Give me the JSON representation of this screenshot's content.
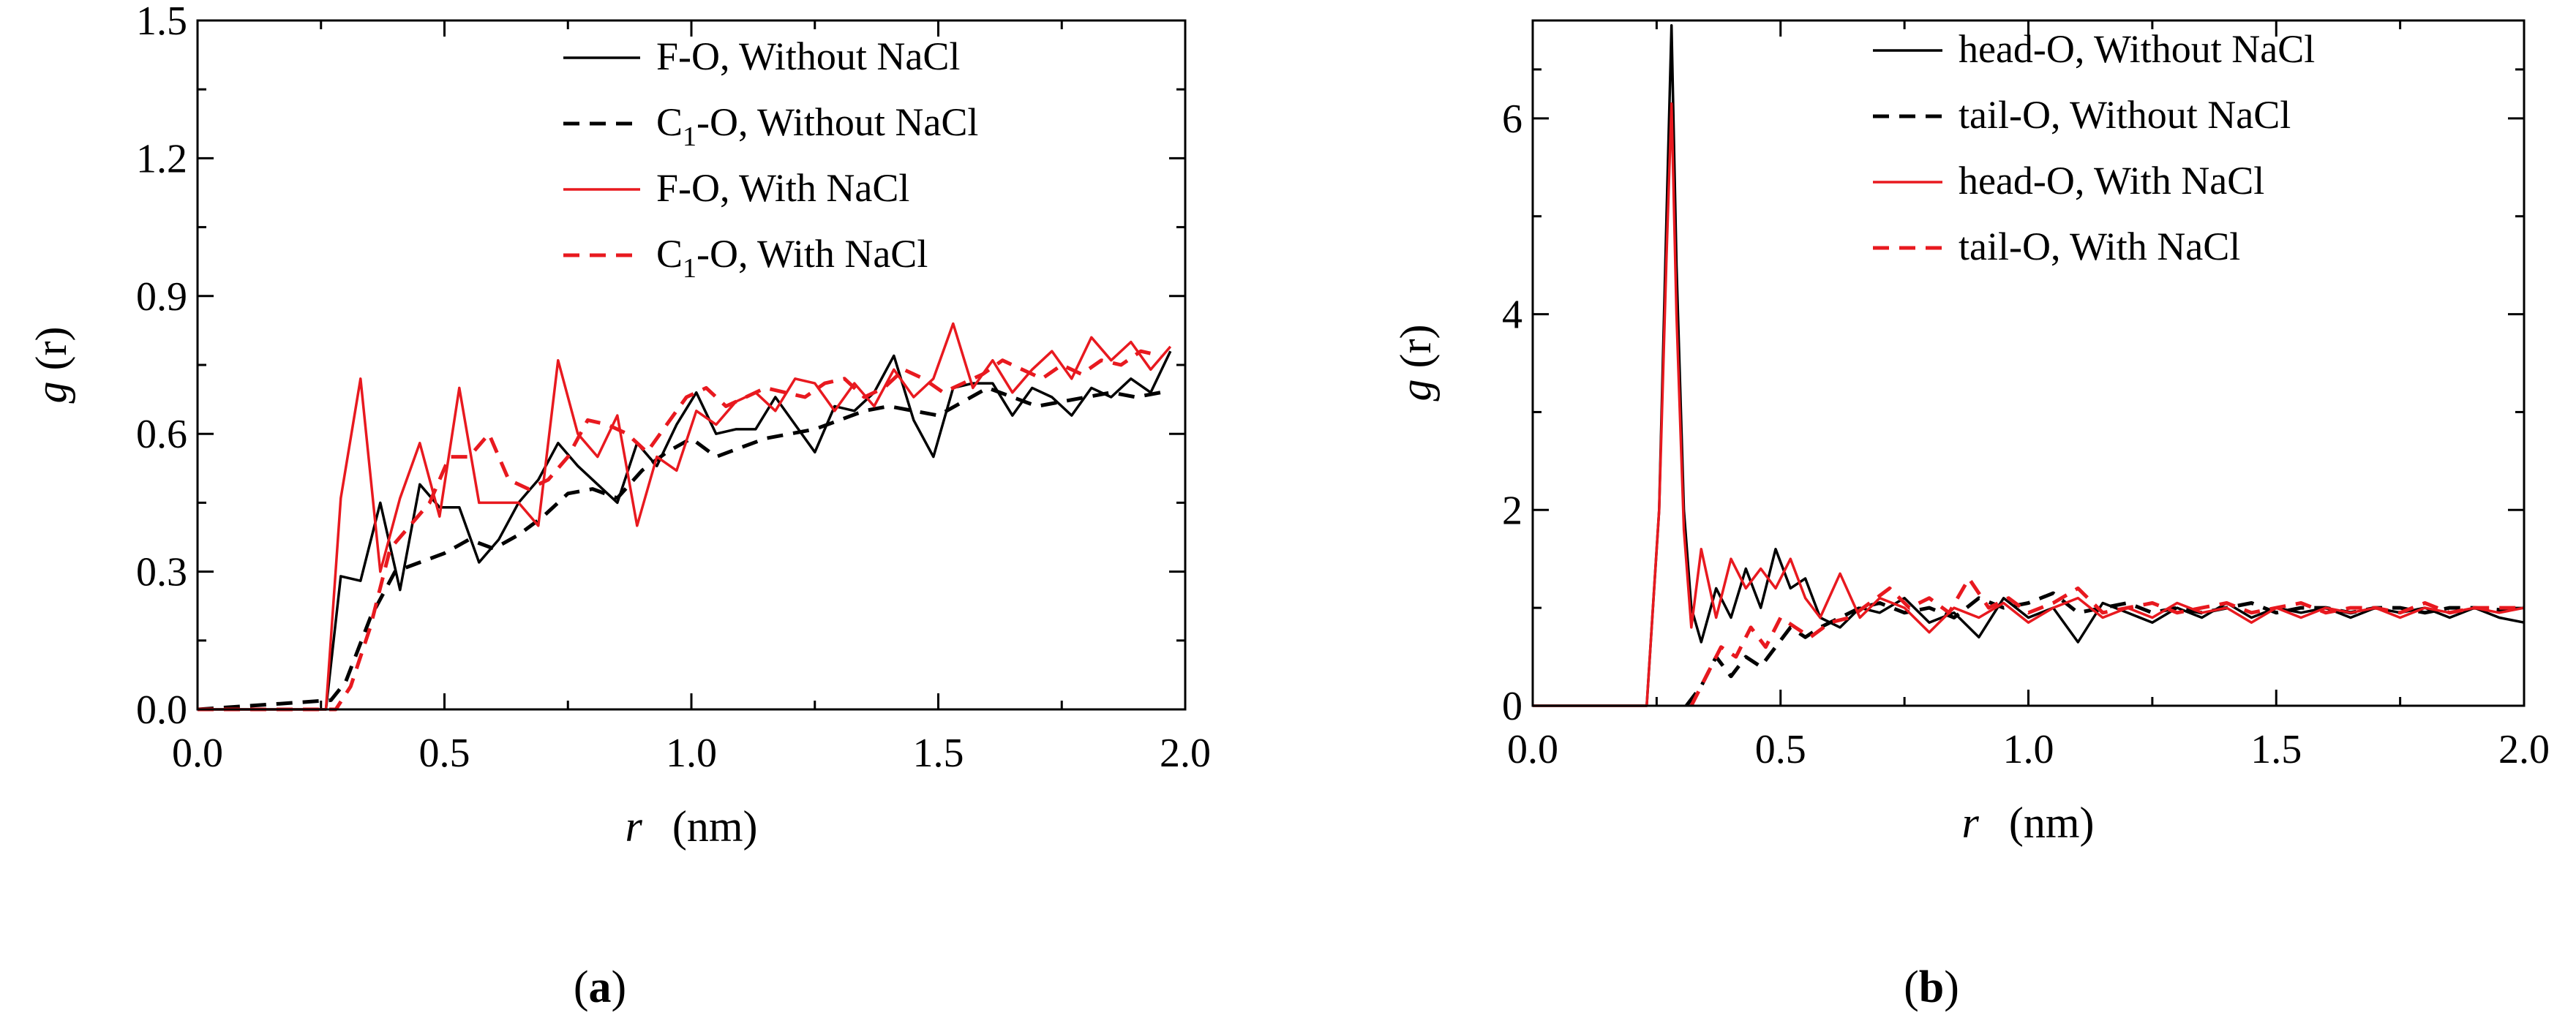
{
  "chart_data": [
    {
      "type": "line",
      "panel": "a",
      "caption_letter": "a",
      "xlabel_var": "r",
      "xlabel_unit": "(nm)",
      "ylabel_var": "g",
      "ylabel_arg": "(r)",
      "xlim": [
        0.0,
        2.0
      ],
      "ylim": [
        0.0,
        1.5
      ],
      "xticks": [
        0.0,
        0.5,
        1.0,
        1.5,
        2.0
      ],
      "xtick_labels": [
        "0.0",
        "0.5",
        "1.0",
        "1.5",
        "2.0"
      ],
      "yticks": [
        0.0,
        0.3,
        0.6,
        0.9,
        1.2,
        1.5
      ],
      "ytick_labels": [
        "0.0",
        "0.3",
        "0.6",
        "0.9",
        "1.2",
        "1.5"
      ],
      "legend_position": "top-right",
      "series": [
        {
          "name": "F-O, Without NaCl",
          "legend": {
            "pre": "F-O, Without NaCl",
            "sub": "",
            "post": ""
          },
          "color": "#000000",
          "dash": "solid",
          "x": [
            0.0,
            0.26,
            0.29,
            0.33,
            0.37,
            0.41,
            0.45,
            0.49,
            0.53,
            0.57,
            0.61,
            0.65,
            0.69,
            0.73,
            0.77,
            0.81,
            0.85,
            0.89,
            0.93,
            0.97,
            1.01,
            1.05,
            1.09,
            1.13,
            1.17,
            1.21,
            1.25,
            1.29,
            1.33,
            1.37,
            1.41,
            1.45,
            1.49,
            1.53,
            1.57,
            1.61,
            1.65,
            1.69,
            1.73,
            1.77,
            1.81,
            1.85,
            1.89,
            1.93,
            1.97
          ],
          "y": [
            0.0,
            0.0,
            0.29,
            0.28,
            0.45,
            0.26,
            0.49,
            0.44,
            0.44,
            0.32,
            0.37,
            0.45,
            0.5,
            0.58,
            0.53,
            0.49,
            0.45,
            0.58,
            0.53,
            0.62,
            0.69,
            0.6,
            0.61,
            0.61,
            0.68,
            0.62,
            0.56,
            0.66,
            0.65,
            0.69,
            0.77,
            0.63,
            0.55,
            0.7,
            0.71,
            0.71,
            0.64,
            0.7,
            0.68,
            0.64,
            0.7,
            0.68,
            0.72,
            0.69,
            0.78
          ]
        },
        {
          "name": "C1-O, Without NaCl",
          "legend": {
            "pre": "C",
            "sub": "1",
            "post": "-O, Without NaCl"
          },
          "color": "#000000",
          "dash": "dash",
          "x": [
            0.0,
            0.27,
            0.3,
            0.35,
            0.4,
            0.45,
            0.5,
            0.55,
            0.6,
            0.65,
            0.7,
            0.75,
            0.8,
            0.85,
            0.9,
            0.95,
            1.0,
            1.05,
            1.1,
            1.15,
            1.2,
            1.25,
            1.3,
            1.35,
            1.4,
            1.45,
            1.5,
            1.55,
            1.6,
            1.65,
            1.7,
            1.75,
            1.8,
            1.85,
            1.9,
            1.95
          ],
          "y": [
            0.0,
            0.02,
            0.06,
            0.2,
            0.3,
            0.32,
            0.34,
            0.37,
            0.35,
            0.38,
            0.42,
            0.47,
            0.48,
            0.46,
            0.52,
            0.56,
            0.59,
            0.55,
            0.57,
            0.59,
            0.6,
            0.61,
            0.63,
            0.65,
            0.66,
            0.65,
            0.64,
            0.67,
            0.7,
            0.68,
            0.66,
            0.67,
            0.68,
            0.69,
            0.68,
            0.69
          ]
        },
        {
          "name": "F-O, With NaCl",
          "legend": {
            "pre": "F-O, With NaCl",
            "sub": "",
            "post": ""
          },
          "color": "#e8191f",
          "dash": "solid",
          "x": [
            0.0,
            0.26,
            0.29,
            0.33,
            0.37,
            0.41,
            0.45,
            0.49,
            0.53,
            0.57,
            0.61,
            0.65,
            0.69,
            0.73,
            0.77,
            0.81,
            0.85,
            0.89,
            0.93,
            0.97,
            1.01,
            1.05,
            1.09,
            1.13,
            1.17,
            1.21,
            1.25,
            1.29,
            1.33,
            1.37,
            1.41,
            1.45,
            1.49,
            1.53,
            1.57,
            1.61,
            1.65,
            1.69,
            1.73,
            1.77,
            1.81,
            1.85,
            1.89,
            1.93,
            1.97
          ],
          "y": [
            0.0,
            0.0,
            0.46,
            0.72,
            0.3,
            0.46,
            0.58,
            0.42,
            0.7,
            0.45,
            0.45,
            0.45,
            0.4,
            0.76,
            0.6,
            0.55,
            0.64,
            0.4,
            0.55,
            0.52,
            0.65,
            0.62,
            0.67,
            0.69,
            0.65,
            0.72,
            0.71,
            0.65,
            0.71,
            0.66,
            0.74,
            0.68,
            0.72,
            0.84,
            0.7,
            0.76,
            0.69,
            0.74,
            0.78,
            0.72,
            0.81,
            0.76,
            0.8,
            0.74,
            0.79
          ]
        },
        {
          "name": "C1-O, With NaCl",
          "legend": {
            "pre": "C",
            "sub": "1",
            "post": "-O, With NaCl"
          },
          "color": "#e8191f",
          "dash": "dash",
          "x": [
            0.0,
            0.28,
            0.31,
            0.35,
            0.39,
            0.43,
            0.47,
            0.51,
            0.55,
            0.59,
            0.63,
            0.67,
            0.71,
            0.75,
            0.79,
            0.83,
            0.87,
            0.91,
            0.95,
            0.99,
            1.03,
            1.07,
            1.11,
            1.15,
            1.19,
            1.23,
            1.27,
            1.31,
            1.35,
            1.39,
            1.43,
            1.47,
            1.51,
            1.55,
            1.59,
            1.63,
            1.67,
            1.71,
            1.75,
            1.79,
            1.83,
            1.87,
            1.91,
            1.95
          ],
          "y": [
            0.0,
            0.0,
            0.05,
            0.18,
            0.35,
            0.4,
            0.45,
            0.55,
            0.55,
            0.6,
            0.5,
            0.48,
            0.5,
            0.55,
            0.63,
            0.62,
            0.6,
            0.56,
            0.62,
            0.68,
            0.7,
            0.66,
            0.68,
            0.7,
            0.69,
            0.68,
            0.71,
            0.72,
            0.68,
            0.7,
            0.74,
            0.72,
            0.69,
            0.71,
            0.73,
            0.76,
            0.74,
            0.72,
            0.75,
            0.73,
            0.76,
            0.75,
            0.78,
            0.77
          ]
        }
      ]
    },
    {
      "type": "line",
      "panel": "b",
      "caption_letter": "b",
      "xlabel_var": "r",
      "xlabel_unit": "(nm)",
      "ylabel_var": "g",
      "ylabel_arg": "(r)",
      "xlim": [
        0.0,
        2.0
      ],
      "ylim": [
        0.0,
        7.0
      ],
      "xticks": [
        0.0,
        0.5,
        1.0,
        1.5,
        2.0
      ],
      "xtick_labels": [
        "0.0",
        "0.5",
        "1.0",
        "1.5",
        "2.0"
      ],
      "yticks": [
        0,
        2,
        4,
        6
      ],
      "ytick_labels": [
        "0",
        "2",
        "4",
        "6"
      ],
      "legend_position": "top-right",
      "series": [
        {
          "name": "head-O, Without NaCl",
          "legend": {
            "pre": "head-O, Without NaCl",
            "sub": "",
            "post": ""
          },
          "color": "#000000",
          "dash": "solid",
          "x": [
            0.0,
            0.23,
            0.255,
            0.27,
            0.28,
            0.29,
            0.305,
            0.32,
            0.34,
            0.37,
            0.4,
            0.43,
            0.46,
            0.49,
            0.52,
            0.55,
            0.58,
            0.62,
            0.66,
            0.7,
            0.75,
            0.8,
            0.85,
            0.9,
            0.95,
            1.0,
            1.05,
            1.1,
            1.15,
            1.2,
            1.25,
            1.3,
            1.35,
            1.4,
            1.45,
            1.5,
            1.55,
            1.6,
            1.65,
            1.7,
            1.75,
            1.8,
            1.85,
            1.9,
            1.95,
            2.0
          ],
          "y": [
            0.0,
            0.0,
            2.0,
            5.0,
            6.95,
            4.5,
            2.0,
            1.0,
            0.65,
            1.2,
            0.9,
            1.4,
            1.0,
            1.6,
            1.2,
            1.3,
            0.9,
            0.8,
            1.0,
            0.95,
            1.1,
            0.85,
            0.95,
            0.7,
            1.1,
            0.9,
            1.0,
            0.65,
            1.05,
            0.95,
            0.85,
            1.0,
            0.9,
            1.05,
            0.9,
            1.0,
            0.95,
            1.0,
            0.9,
            1.0,
            0.95,
            1.0,
            0.9,
            1.0,
            0.9,
            0.85
          ]
        },
        {
          "name": "tail-O, Without NaCl",
          "legend": {
            "pre": "tail-O, Without NaCl",
            "sub": "",
            "post": ""
          },
          "color": "#000000",
          "dash": "dash",
          "x": [
            0.31,
            0.34,
            0.37,
            0.4,
            0.43,
            0.46,
            0.49,
            0.52,
            0.55,
            0.58,
            0.62,
            0.66,
            0.7,
            0.75,
            0.8,
            0.85,
            0.9,
            0.95,
            1.0,
            1.05,
            1.1,
            1.15,
            1.2,
            1.25,
            1.3,
            1.35,
            1.4,
            1.45,
            1.5,
            1.55,
            1.6,
            1.65,
            1.7,
            1.75,
            1.8,
            1.85,
            1.9,
            1.95,
            2.0
          ],
          "y": [
            0.0,
            0.2,
            0.5,
            0.3,
            0.5,
            0.4,
            0.6,
            0.8,
            0.7,
            0.8,
            0.9,
            1.0,
            1.05,
            0.95,
            1.0,
            0.9,
            1.1,
            1.0,
            1.05,
            1.15,
            0.95,
            1.0,
            1.05,
            0.95,
            1.0,
            0.95,
            1.0,
            1.05,
            0.95,
            1.0,
            1.0,
            0.95,
            1.0,
            1.0,
            0.95,
            1.0,
            1.0,
            0.98,
            1.0
          ]
        },
        {
          "name": "head-O, With NaCl",
          "legend": {
            "pre": "head-O, With NaCl",
            "sub": "",
            "post": ""
          },
          "color": "#e8191f",
          "dash": "solid",
          "x": [
            0.0,
            0.23,
            0.255,
            0.27,
            0.28,
            0.29,
            0.305,
            0.32,
            0.34,
            0.37,
            0.4,
            0.43,
            0.46,
            0.49,
            0.52,
            0.55,
            0.58,
            0.62,
            0.66,
            0.7,
            0.75,
            0.8,
            0.85,
            0.9,
            0.95,
            1.0,
            1.05,
            1.1,
            1.15,
            1.2,
            1.25,
            1.3,
            1.35,
            1.4,
            1.45,
            1.5,
            1.55,
            1.6,
            1.65,
            1.7,
            1.75,
            1.8,
            1.85,
            1.9,
            1.95,
            2.0
          ],
          "y": [
            0.0,
            0.0,
            2.0,
            4.6,
            6.15,
            4.0,
            1.8,
            0.8,
            1.6,
            0.9,
            1.5,
            1.2,
            1.4,
            1.2,
            1.5,
            1.1,
            0.9,
            1.35,
            0.9,
            1.1,
            1.0,
            0.75,
            1.0,
            0.9,
            1.05,
            0.85,
            1.0,
            1.1,
            0.9,
            1.0,
            0.9,
            1.05,
            0.95,
            1.0,
            0.85,
            1.0,
            0.9,
            1.0,
            0.95,
            1.0,
            0.9,
            1.0,
            0.95,
            1.0,
            0.95,
            1.0
          ]
        },
        {
          "name": "tail-O, With NaCl",
          "legend": {
            "pre": "tail-O, With NaCl",
            "sub": "",
            "post": ""
          },
          "color": "#e8191f",
          "dash": "dash",
          "x": [
            0.32,
            0.35,
            0.38,
            0.41,
            0.44,
            0.47,
            0.5,
            0.53,
            0.56,
            0.6,
            0.64,
            0.68,
            0.72,
            0.76,
            0.8,
            0.84,
            0.88,
            0.92,
            0.96,
            1.0,
            1.05,
            1.1,
            1.15,
            1.2,
            1.25,
            1.3,
            1.35,
            1.4,
            1.45,
            1.5,
            1.55,
            1.6,
            1.65,
            1.7,
            1.75,
            1.8,
            1.85,
            1.9,
            1.95,
            2.0
          ],
          "y": [
            0.0,
            0.3,
            0.6,
            0.5,
            0.8,
            0.6,
            0.9,
            0.8,
            0.7,
            0.85,
            0.9,
            1.05,
            1.2,
            1.0,
            1.1,
            0.95,
            1.3,
            1.0,
            1.1,
            0.95,
            1.05,
            1.2,
            0.95,
            1.0,
            1.05,
            0.95,
            1.0,
            1.05,
            0.95,
            1.0,
            1.05,
            0.95,
            1.0,
            1.0,
            0.95,
            1.05,
            0.95,
            1.0,
            1.0,
            1.0
          ]
        }
      ]
    }
  ]
}
